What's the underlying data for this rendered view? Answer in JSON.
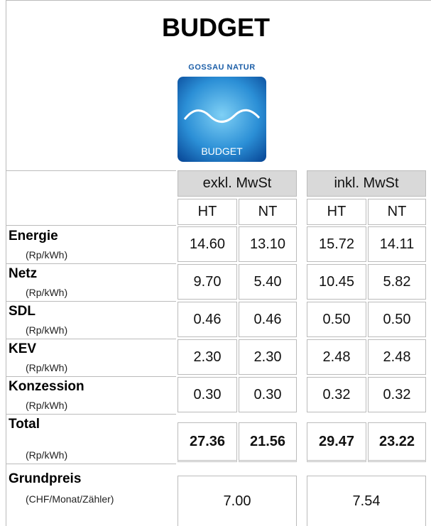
{
  "header": {
    "title": "BUDGET",
    "logo": {
      "brand": "GOSSAU NATUR",
      "name": "BUDGET"
    }
  },
  "table": {
    "groups": [
      "exkl. MwSt",
      "inkl. MwSt"
    ],
    "subheaders": [
      "HT",
      "NT",
      "HT",
      "NT"
    ],
    "rows": [
      {
        "label": "Energie",
        "unit": "(Rp/kWh)",
        "values": [
          "14.60",
          "13.10",
          "15.72",
          "14.11"
        ]
      },
      {
        "label": "Netz",
        "unit": "(Rp/kWh)",
        "values": [
          "9.70",
          "5.40",
          "10.45",
          "5.82"
        ]
      },
      {
        "label": "SDL",
        "unit": "(Rp/kWh)",
        "values": [
          "0.46",
          "0.46",
          "0.50",
          "0.50"
        ]
      },
      {
        "label": "KEV",
        "unit": "(Rp/kWh)",
        "values": [
          "2.30",
          "2.30",
          "2.48",
          "2.48"
        ]
      },
      {
        "label": "Konzession",
        "unit": "(Rp/kWh)",
        "values": [
          "0.30",
          "0.30",
          "0.32",
          "0.32"
        ]
      },
      {
        "label": "Total",
        "unit": "(Rp/kWh)",
        "values": [
          "27.36",
          "21.56",
          "29.47",
          "23.22"
        ]
      }
    ],
    "base": {
      "label": "Grundpreis",
      "unit": "(CHF/Monat/Zähler)",
      "values": [
        "7.00",
        "7.54"
      ]
    }
  }
}
